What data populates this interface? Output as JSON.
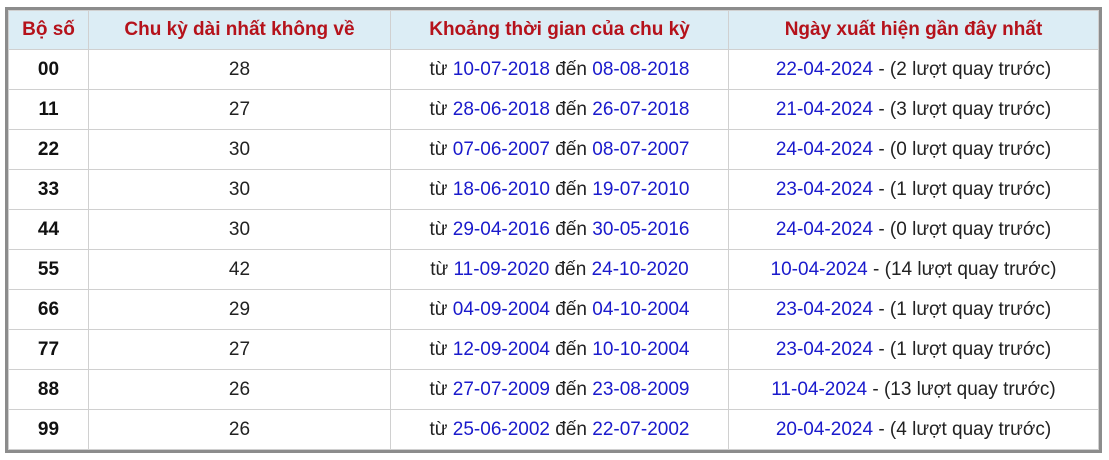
{
  "table": {
    "headers": [
      "Bộ số",
      "Chu kỳ dài nhất không về",
      "Khoảng thời gian của chu kỳ",
      "Ngày xuất hiện gần đây nhất"
    ],
    "labels": {
      "from": "từ",
      "to": "đến",
      "sep": "-"
    },
    "rows": [
      {
        "code": "00",
        "cycle": 28,
        "from": "10-07-2018",
        "to": "08-08-2018",
        "last": "22-04-2024",
        "note": "(2 lượt quay trước)"
      },
      {
        "code": "11",
        "cycle": 27,
        "from": "28-06-2018",
        "to": "26-07-2018",
        "last": "21-04-2024",
        "note": "(3 lượt quay trước)"
      },
      {
        "code": "22",
        "cycle": 30,
        "from": "07-06-2007",
        "to": "08-07-2007",
        "last": "24-04-2024",
        "note": "(0 lượt quay trước)"
      },
      {
        "code": "33",
        "cycle": 30,
        "from": "18-06-2010",
        "to": "19-07-2010",
        "last": "23-04-2024",
        "note": "(1 lượt quay trước)"
      },
      {
        "code": "44",
        "cycle": 30,
        "from": "29-04-2016",
        "to": "30-05-2016",
        "last": "24-04-2024",
        "note": "(0 lượt quay trước)"
      },
      {
        "code": "55",
        "cycle": 42,
        "from": "11-09-2020",
        "to": "24-10-2020",
        "last": "10-04-2024",
        "note": "(14 lượt quay trước)"
      },
      {
        "code": "66",
        "cycle": 29,
        "from": "04-09-2004",
        "to": "04-10-2004",
        "last": "23-04-2024",
        "note": "(1 lượt quay trước)"
      },
      {
        "code": "77",
        "cycle": 27,
        "from": "12-09-2004",
        "to": "10-10-2004",
        "last": "23-04-2024",
        "note": "(1 lượt quay trước)"
      },
      {
        "code": "88",
        "cycle": 26,
        "from": "27-07-2009",
        "to": "23-08-2009",
        "last": "11-04-2024",
        "note": "(13 lượt quay trước)"
      },
      {
        "code": "99",
        "cycle": 26,
        "from": "25-06-2002",
        "to": "22-07-2002",
        "last": "20-04-2024",
        "note": "(4 lượt quay trước)"
      }
    ]
  }
}
